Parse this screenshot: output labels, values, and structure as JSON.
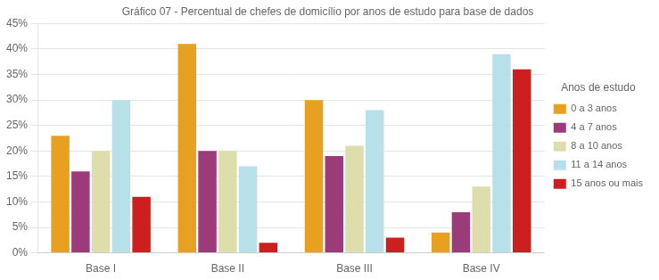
{
  "chart_data": {
    "type": "bar",
    "title": "Gráfico 07 - Percentual de chefes de domicílio por anos de estudo para base de dados",
    "categories": [
      "Base I",
      "Base II",
      "Base III",
      "Base IV"
    ],
    "series": [
      {
        "name": "0 a 3 anos",
        "color": "#E8A020",
        "values": [
          23,
          41,
          30,
          4
        ]
      },
      {
        "name": "4 a 7 anos",
        "color": "#9B3B7A",
        "values": [
          16,
          20,
          19,
          8
        ]
      },
      {
        "name": "8 a 10 anos",
        "color": "#DEDEAD",
        "values": [
          20,
          20,
          21,
          13
        ]
      },
      {
        "name": "11 a 14 anos",
        "color": "#B8E0E8",
        "values": [
          30,
          17,
          28,
          39
        ]
      },
      {
        "name": "15 anos ou mais",
        "color": "#CC2020",
        "values": [
          11,
          2,
          3,
          36
        ]
      }
    ],
    "legend_title": "Anos de estudo",
    "ylim": [
      0,
      45
    ],
    "yticks": [
      {
        "value": 0,
        "label": "0%"
      },
      {
        "value": 5,
        "label": "5%"
      },
      {
        "value": 10,
        "label": "10%"
      },
      {
        "value": 15,
        "label": "15%"
      },
      {
        "value": 20,
        "label": "20%"
      },
      {
        "value": 25,
        "label": "25%"
      },
      {
        "value": 30,
        "label": "30%"
      },
      {
        "value": 35,
        "label": "35%"
      },
      {
        "value": 40,
        "label": "40%"
      },
      {
        "value": 45,
        "label": "45%"
      }
    ],
    "grid": true,
    "legend": "right"
  }
}
